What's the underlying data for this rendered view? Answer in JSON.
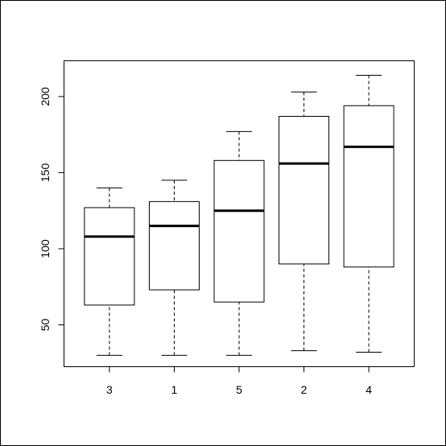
{
  "chart_data": {
    "type": "box",
    "categories": [
      "3",
      "1",
      "5",
      "2",
      "4"
    ],
    "min": [
      30,
      30,
      30,
      33,
      32
    ],
    "q1": [
      63,
      73,
      65,
      90,
      88
    ],
    "median": [
      108,
      115,
      125,
      156,
      167
    ],
    "q3": [
      127,
      131,
      158,
      187,
      194
    ],
    "max": [
      140,
      145,
      177,
      203,
      214
    ],
    "ylim": [
      22.5,
      223.5
    ],
    "yticks": [
      50,
      100,
      150,
      200
    ]
  }
}
